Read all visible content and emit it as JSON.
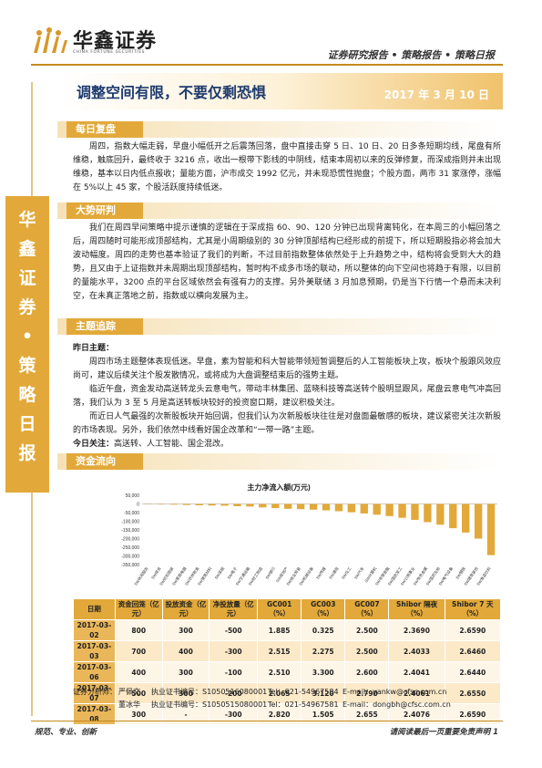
{
  "header": {
    "company_cn": "华鑫证券",
    "company_en": "CHINA FORTUNE SECURITIES",
    "breadcrumb": "证券研究报告 • 策略报告 • 策略日报"
  },
  "sidebar_chars": [
    "华",
    "鑫",
    "证",
    "券",
    "•",
    "策",
    "略",
    "日",
    "报"
  ],
  "title": "调整空间有限，不要仅剩恐惧",
  "date": "2017 年 3 月 10 日",
  "sections": {
    "review": {
      "tag": "每日复盘",
      "text": "周四，指数大幅走弱，早盘小幅低开之后震荡回落，盘中直接击穿 5 日、10 日、20 日多条短期均线，尾盘有所维稳，触底回升，最终收于 3216 点，收出一根带下影线的中阴线，结束本周初以来的反弹修复，而深成指则并未出现维稳，基本以日内低点报收；量能方面，沪市成交 1992 亿元，并未现恐慌性抛盘；个股方面，两市 31 家涨停，涨幅在 5%以上 45 家，个股活跃度持续低迷。"
    },
    "trend": {
      "tag": "大势研判",
      "text": "我们在周四早间策略中提示谨慎的逻辑在于深成指 60、90、120 分钟已出现背离钝化，在本周三的小幅回落之后，周四随时可能形成顶部结构，尤其是小周期级别的 30 分钟顶部结构已经形成的前提下，所以短期股指必将会加大波动幅度。周四的走势也基本验证了我们的判断，不过目前指数整体依然处于上升趋势之中，结构将会受到大大的趋势，且又由于上证指数并未周期出现顶部结构，暂时构不成多市场的联动，所以整体的向下空间也将趋于有限，以目前的量能水平，3200 点的平台区域依然会有强有力的支撑。另外美联储 3 月加息预期，仍是当下行情一个悬而未决利空，在未真正落地之前，指数或以横向发展为主。"
    },
    "theme": {
      "tag": "主题追踪",
      "yesterday_label": "昨日主题：",
      "p1": "周四市场主题整体表现低迷。早盘，素为智能和科大智能带领短暂调整后的人工智能板块上攻，板块个股跟风效应尚可，建议后续关注个股发散情况，或将成为大盘调整结束后的强势主题。",
      "p2": "临近午盘，资金发动高送转龙头云意电气，带动丰林集团、蓝晓科技等高送转个股明显跟风，尾盘云意电气冲高回落，我们认为 3 至 5 月是高送转板块较好的投资窗口期，建议积极关注。",
      "p3": "而近日人气最强的次新股板块开始回调，但我们认为次新股板块往往是对盘面最敏感的板块，建议紧密关注次新股的市场表现。另外，我们依然中线看好国企改革和“一带一路”主题。",
      "today_label": "今日关注：",
      "today_text": "高送转、人工智能、国企混改。"
    },
    "flow": {
      "tag": "资金流向"
    }
  },
  "chart_data": {
    "type": "bar",
    "title": "主力净流入额(万元)",
    "ylim": [
      -350000,
      50000
    ],
    "yticks": [
      50000,
      0,
      -50000,
      -100000,
      -150000,
      -200000,
      -250000,
      -300000,
      -350000
    ],
    "ytick_labels": [
      "50,000",
      "0",
      "-50,000",
      "-100,000",
      "-150,000",
      "-200,000",
      "-250,000",
      "-300,000",
      "-350,000"
    ],
    "categories": [
      "SW电子",
      "SW非银金融",
      "SW计算机",
      "SW机械设备",
      "SW化工",
      "SW汽车",
      "SW有色金属",
      "SW国防军工",
      "SW公用事业",
      "SW交通运输",
      "SW建筑装饰",
      "SW电气设备",
      "SW医药生物",
      "SW房地产",
      "SW银行",
      "SW通信",
      "SW钢铁",
      "SW商业贸易",
      "SW传媒",
      "SW综合",
      "SW轻工制造",
      "SW采掘",
      "SW家用电器",
      "SW纺织服装",
      "SW建筑材料",
      "SW农林牧渔",
      "SW休闲服务",
      "SW食品饮料"
    ],
    "visible_labels": [
      "SW休闲服务",
      "SW综合",
      "SW纺织服装",
      "SW家用电器",
      "SW农林牧渔",
      "SW建筑材料",
      "SW采掘",
      "SW电子",
      "SW交通运输",
      "SW轻工制造",
      "SW银行",
      "SW房地产",
      "SW商业贸易",
      "SW机械设备",
      "SW传媒",
      "SW通信",
      "SW化工",
      "SW汽车",
      "SW计算机",
      "SW非银金融",
      "SW国防军工",
      "SW公用事业",
      "SW有色金属",
      "SW医药生物",
      "SW电气设备",
      "SW钢铁",
      "SW建筑装饰",
      "SW食品饮料"
    ],
    "values": [
      -2000,
      -3000,
      -4000,
      -6000,
      -8000,
      -9000,
      -10000,
      -13000,
      -15000,
      -20000,
      -24000,
      -28000,
      -30000,
      -33000,
      -37000,
      -42000,
      -48000,
      -55000,
      -62000,
      -70000,
      -80000,
      -92000,
      -105000,
      -120000,
      -140000,
      -165000,
      -200000,
      -295000
    ],
    "bar_color": "#e2a93a"
  },
  "table": {
    "headers": [
      "日期",
      "资金回笼（亿元）",
      "投放资金（亿元）",
      "净投放量（亿元）",
      "GC001（%）",
      "GC003（%）",
      "GC007（%）",
      "Shibor 隔夜（%）",
      "Shibor 7 天（%）"
    ],
    "rows": [
      [
        "2017-03-02",
        "800",
        "300",
        "-500",
        "1.885",
        "0.325",
        "2.500",
        "2.3690",
        "2.6590"
      ],
      [
        "2017-03-03",
        "700",
        "400",
        "-300",
        "2.515",
        "2.275",
        "2.500",
        "2.4033",
        "2.6460"
      ],
      [
        "2017-03-06",
        "400",
        "300",
        "-100",
        "2.510",
        "3.300",
        "2.600",
        "2.4041",
        "2.6440"
      ],
      [
        "2017-03-07",
        "500",
        "300",
        "-200",
        "2.065",
        "3.120",
        "2.790",
        "2.4061",
        "2.6550"
      ],
      [
        "2017-03-08",
        "300",
        "-",
        "-300",
        "2.820",
        "1.505",
        "2.655",
        "2.4076",
        "2.6590"
      ]
    ]
  },
  "analysts": [
    {
      "role": "证券分析师：",
      "name": "严佩文",
      "cert": "执业证书编号：S1050516080001",
      "tel": "Tel：021-54967584",
      "email": "E-mail：yankw@cfsc.com.cn"
    },
    {
      "role": "",
      "name": "董冰华",
      "cert": "执业证书编号：S1050515080001",
      "tel": "Tel：021-54967581",
      "email": "E-mail：dongbh@cfsc.com.cn"
    }
  ],
  "footer": {
    "left": "规范、专业、创新",
    "right": "请阅读最后一页重要免责声明 1"
  },
  "colors": {
    "accent": "#e2a93a",
    "title_blue": "#1e3b6e",
    "line": "#c58a1f"
  }
}
